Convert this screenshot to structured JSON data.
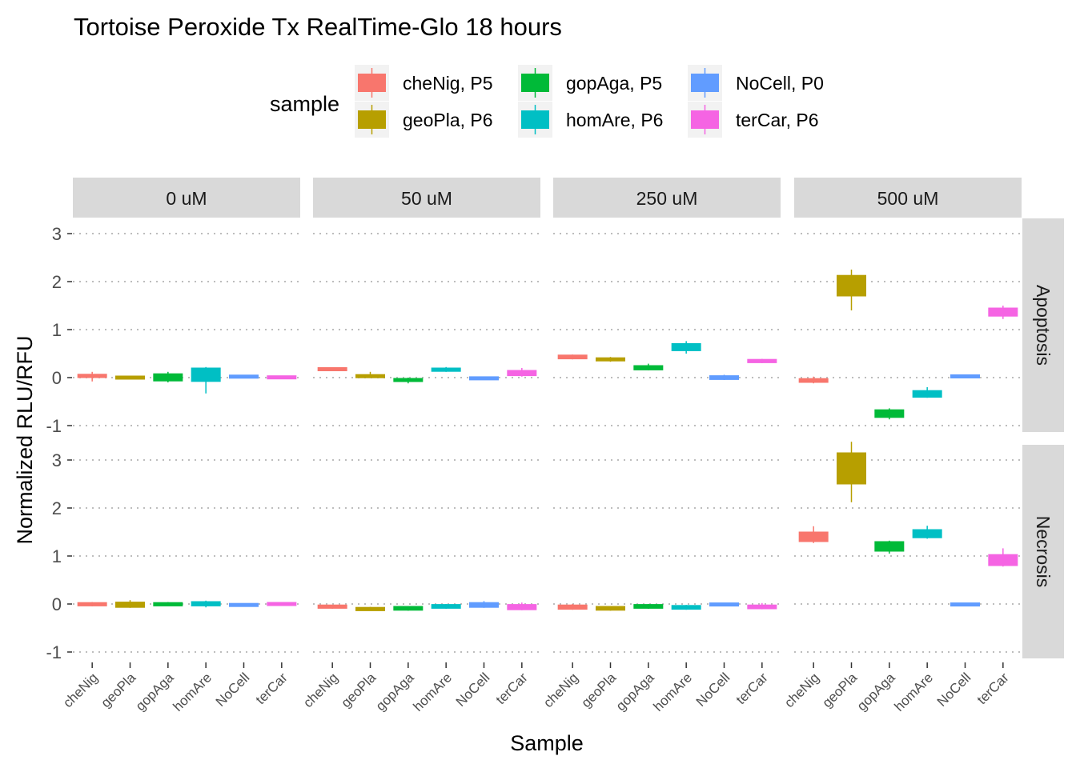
{
  "chart_data": {
    "type": "boxplot",
    "title": "Tortoise Peroxide Tx RealTime-Glo 18 hours",
    "xlabel": "Sample",
    "ylabel": "Normalized RLU/RFU",
    "legend": {
      "title": "sample",
      "position": "top",
      "entries": [
        {
          "label": "cheNig, P5",
          "color": "#F8766D"
        },
        {
          "label": "geoPla, P6",
          "color": "#B79F00"
        },
        {
          "label": "gopAga, P5",
          "color": "#00BA38"
        },
        {
          "label": "homAre, P6",
          "color": "#00BFC4"
        },
        {
          "label": "NoCell, P0",
          "color": "#619CFF"
        },
        {
          "label": "terCar, P6",
          "color": "#F564E3"
        }
      ]
    },
    "categories": [
      "cheNig",
      "geoPla",
      "gopAga",
      "homAre",
      "NoCell",
      "terCar"
    ],
    "columns": [
      "0 uM",
      "50 uM",
      "250 uM",
      "500 uM"
    ],
    "rows": [
      "Apoptosis",
      "Necrosis"
    ],
    "rows_y_ticks": [
      [
        -1,
        0,
        1,
        2,
        3
      ],
      [
        -1,
        0,
        1,
        2,
        3
      ]
    ],
    "y_tick_labels": [
      "-1",
      "0",
      "1",
      "2",
      "3"
    ],
    "ylim": [
      -1.2,
      3.25
    ],
    "grid": "horizontal dotted",
    "panels": [
      {
        "row": "Apoptosis",
        "column": "0 uM",
        "boxes": [
          [
            -0.08,
            0.0,
            0.04,
            0.07,
            0.12
          ],
          [
            -0.03,
            -0.02,
            0.0,
            0.02,
            0.04
          ],
          [
            -0.1,
            -0.07,
            0.02,
            0.08,
            0.12
          ],
          [
            -0.33,
            -0.08,
            0.05,
            0.2,
            0.22
          ],
          [
            0.0,
            0.0,
            0.02,
            0.04,
            0.05
          ],
          [
            -0.02,
            -0.01,
            0.0,
            0.02,
            0.03
          ]
        ]
      },
      {
        "row": "Apoptosis",
        "column": "50 uM",
        "boxes": [
          [
            0.14,
            0.15,
            0.18,
            0.2,
            0.21
          ],
          [
            0.0,
            0.0,
            0.03,
            0.06,
            0.12
          ],
          [
            -0.12,
            -0.08,
            -0.04,
            -0.02,
            0.0
          ],
          [
            0.12,
            0.13,
            0.17,
            0.2,
            0.22
          ],
          [
            -0.04,
            -0.04,
            -0.01,
            0.01,
            0.02
          ],
          [
            0.02,
            0.04,
            0.1,
            0.15,
            0.2
          ]
        ]
      },
      {
        "row": "Apoptosis",
        "column": "250 uM",
        "boxes": [
          [
            0.38,
            0.39,
            0.42,
            0.47,
            0.48
          ],
          [
            0.33,
            0.35,
            0.38,
            0.41,
            0.43
          ],
          [
            0.15,
            0.16,
            0.2,
            0.25,
            0.29
          ],
          [
            0.5,
            0.56,
            0.62,
            0.71,
            0.76
          ],
          [
            -0.05,
            -0.04,
            0.0,
            0.04,
            0.06
          ],
          [
            0.3,
            0.31,
            0.34,
            0.38,
            0.39
          ]
        ]
      },
      {
        "row": "Apoptosis",
        "column": "500 uM",
        "boxes": [
          [
            -0.12,
            -0.1,
            -0.06,
            -0.02,
            0.02
          ],
          [
            1.4,
            1.7,
            1.9,
            2.13,
            2.25
          ],
          [
            -0.87,
            -0.83,
            -0.75,
            -0.67,
            -0.64
          ],
          [
            -0.42,
            -0.41,
            -0.34,
            -0.27,
            -0.2
          ],
          [
            0.0,
            0.0,
            0.02,
            0.05,
            0.05
          ],
          [
            1.22,
            1.28,
            1.36,
            1.45,
            1.5
          ]
        ]
      },
      {
        "row": "Necrosis",
        "column": "0 uM",
        "boxes": [
          [
            -0.05,
            -0.04,
            -0.01,
            0.03,
            0.04
          ],
          [
            -0.08,
            -0.07,
            -0.02,
            0.04,
            0.08
          ],
          [
            -0.04,
            -0.04,
            -0.01,
            0.03,
            0.04
          ],
          [
            -0.07,
            -0.04,
            0.0,
            0.05,
            0.07
          ],
          [
            -0.05,
            -0.04,
            -0.02,
            0.0,
            0.0
          ],
          [
            -0.04,
            -0.03,
            -0.01,
            0.03,
            0.04
          ]
        ]
      },
      {
        "row": "Necrosis",
        "column": "50 uM",
        "boxes": [
          [
            -0.1,
            -0.09,
            -0.06,
            -0.02,
            -0.02
          ],
          [
            -0.14,
            -0.14,
            -0.1,
            -0.07,
            -0.06
          ],
          [
            -0.14,
            -0.13,
            -0.09,
            -0.05,
            -0.05
          ],
          [
            -0.1,
            -0.09,
            -0.06,
            -0.01,
            0.0
          ],
          [
            -0.08,
            -0.07,
            -0.03,
            0.03,
            0.06
          ],
          [
            -0.13,
            -0.12,
            -0.07,
            -0.01,
            0.03
          ]
        ]
      },
      {
        "row": "Necrosis",
        "column": "250 uM",
        "boxes": [
          [
            -0.12,
            -0.11,
            -0.06,
            -0.02,
            0.0
          ],
          [
            -0.14,
            -0.13,
            -0.09,
            -0.05,
            -0.05
          ],
          [
            -0.1,
            -0.09,
            -0.05,
            -0.01,
            0.0
          ],
          [
            -0.12,
            -0.11,
            -0.07,
            -0.03,
            -0.02
          ],
          [
            -0.05,
            -0.04,
            -0.01,
            0.02,
            0.02
          ],
          [
            -0.11,
            -0.1,
            -0.06,
            -0.02,
            0.02
          ]
        ]
      },
      {
        "row": "Necrosis",
        "column": "500 uM",
        "boxes": [
          [
            1.27,
            1.3,
            1.4,
            1.5,
            1.62
          ],
          [
            2.12,
            2.5,
            2.8,
            3.15,
            3.38
          ],
          [
            1.05,
            1.1,
            1.2,
            1.3,
            1.32
          ],
          [
            1.36,
            1.38,
            1.48,
            1.55,
            1.63
          ],
          [
            -0.03,
            -0.03,
            -0.01,
            0.01,
            0.02
          ],
          [
            0.78,
            0.8,
            0.9,
            1.03,
            1.16
          ]
        ]
      }
    ]
  }
}
